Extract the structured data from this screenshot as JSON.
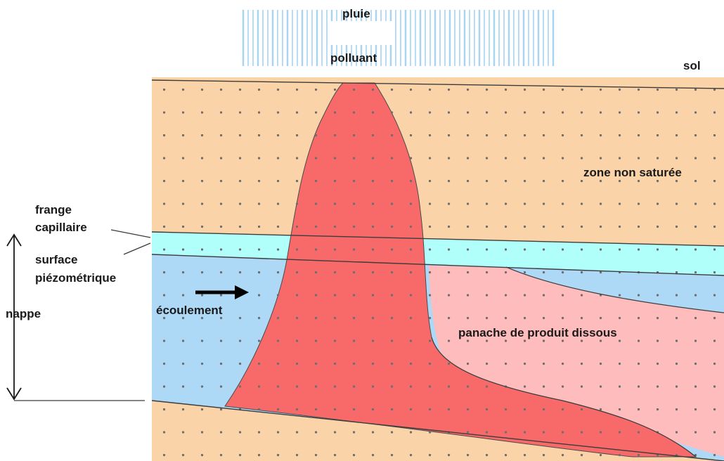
{
  "labels": {
    "pluie": "pluie",
    "polluant": "polluant",
    "sol": "sol",
    "zone_non_saturee": "zone non saturée",
    "frange": "frange",
    "capillaire": "capillaire",
    "surface": "surface",
    "piezometrique": "piézométrique",
    "nappe": "nappe",
    "ecoulement": "écoulement",
    "panache": "panache de produit dissous"
  },
  "colors": {
    "soil": "#fad3a8",
    "capillary_fringe": "#b0fffa",
    "aquifer": "#add8f6",
    "plume": "#ffbcbc",
    "pollutant_core": "#f86a6a",
    "rain": "#a7d4f1",
    "dots": "#6e6e6e",
    "lines": "#3c3c3c"
  }
}
